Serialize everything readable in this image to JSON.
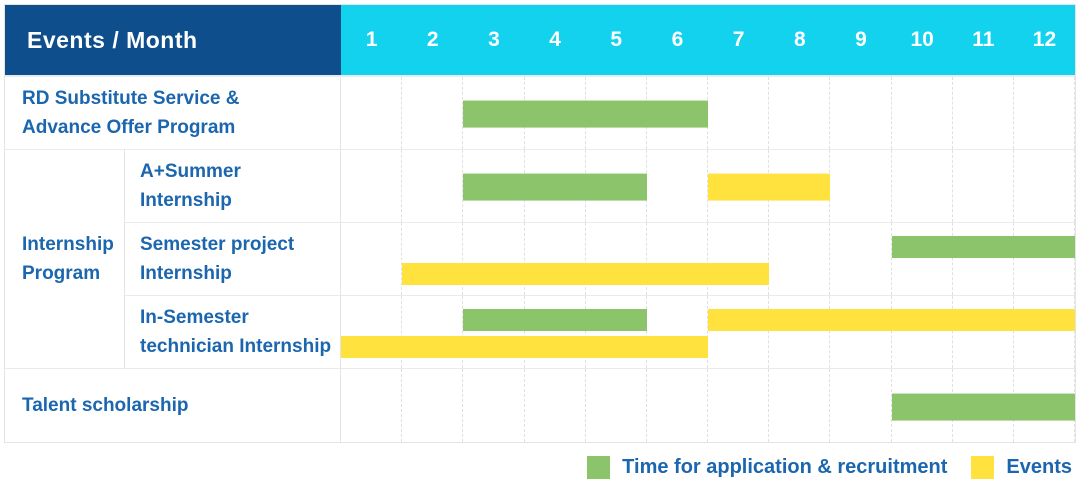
{
  "header": {
    "title": "Events / Month",
    "months": [
      "1",
      "2",
      "3",
      "4",
      "5",
      "6",
      "7",
      "8",
      "9",
      "10",
      "11",
      "12"
    ]
  },
  "colors": {
    "header_bg": "#0f4e8c",
    "months_bg": "#12d2ee",
    "label_text": "#1b66ae",
    "application_green": "#8bc46a",
    "events_yellow": "#ffe23e"
  },
  "legend": [
    {
      "series": "application",
      "label": "Time for application & recruitment"
    },
    {
      "series": "events",
      "label": "Events"
    }
  ],
  "chart_data": {
    "type": "gantt",
    "x_unit": "month",
    "x_range": [
      1,
      12
    ],
    "series_colors": {
      "application": "#8bc46a",
      "events": "#ffe23e"
    },
    "series_names": {
      "application": "Time for application & recruitment",
      "events": "Events"
    },
    "rows": [
      {
        "group": "",
        "label": "RD Substitute Service &\nAdvance Offer Program",
        "bars": [
          {
            "series": "application",
            "start": 3,
            "end": 6,
            "line": "center"
          }
        ]
      },
      {
        "group": "Internship Program",
        "label": "A+Summer\nInternship",
        "bars": [
          {
            "series": "application",
            "start": 3,
            "end": 5,
            "line": "center"
          },
          {
            "series": "events",
            "start": 7,
            "end": 8,
            "line": "center"
          }
        ]
      },
      {
        "group": "Internship Program",
        "label": "Semester project\nInternship",
        "bars": [
          {
            "series": "application",
            "start": 10,
            "end": 12,
            "line": "top"
          },
          {
            "series": "events",
            "start": 2,
            "end": 7,
            "line": "bottom"
          }
        ]
      },
      {
        "group": "Internship Program",
        "label": "In-Semester\ntechnician Internship",
        "bars": [
          {
            "series": "application",
            "start": 3,
            "end": 5,
            "line": "top"
          },
          {
            "series": "events",
            "start": 7,
            "end": 12,
            "line": "top"
          },
          {
            "series": "events",
            "start": 1,
            "end": 6,
            "line": "bottom"
          }
        ]
      },
      {
        "group": "",
        "label": "Talent scholarship",
        "bars": [
          {
            "series": "application",
            "start": 10,
            "end": 12,
            "line": "center"
          }
        ]
      }
    ]
  }
}
